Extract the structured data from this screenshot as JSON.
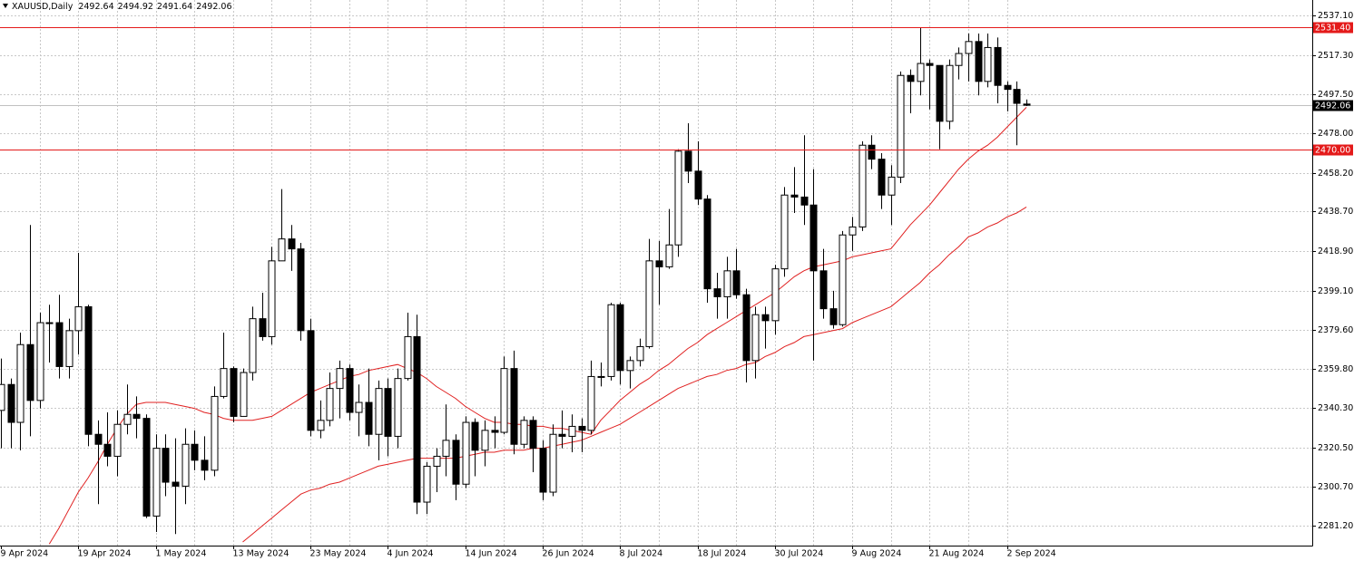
{
  "chart_data": {
    "type": "candlestick",
    "title": "XAUUSD,Daily",
    "categories": [
      "9 Apr 2024",
      null,
      null,
      null,
      null,
      null,
      null,
      null,
      "19 Apr 2024",
      null,
      null,
      null,
      null,
      null,
      null,
      null,
      "1 May 2024",
      null,
      null,
      null,
      null,
      null,
      null,
      null,
      "13 May 2024",
      null,
      null,
      null,
      null,
      null,
      null,
      null,
      "23 May 2024",
      null,
      null,
      null,
      null,
      null,
      null,
      null,
      "4 Jun 2024",
      null,
      null,
      null,
      null,
      null,
      null,
      null,
      "14 Jun 2024",
      null,
      null,
      null,
      null,
      null,
      null,
      null,
      "26 Jun 2024",
      null,
      null,
      null,
      null,
      null,
      null,
      null,
      "8 Jul 2024",
      null,
      null,
      null,
      null,
      null,
      null,
      null,
      "18 Jul 2024",
      null,
      null,
      null,
      null,
      null,
      null,
      null,
      "30 Jul 2024",
      null,
      null,
      null,
      null,
      null,
      null,
      null,
      "9 Aug 2024",
      null,
      null,
      null,
      null,
      null,
      null,
      null,
      "21 Aug 2024",
      null,
      null,
      null,
      null,
      null,
      null,
      null,
      "2 Sep 2024",
      null,
      null
    ],
    "open": [
      2339,
      2352,
      2333,
      2372,
      2344,
      2383,
      2383,
      2361,
      2379,
      2391,
      2327,
      2322,
      2316,
      2332,
      2337,
      2335,
      2286,
      2320,
      2303,
      2301,
      2322,
      2314,
      2309,
      2346,
      2360,
      2336,
      2358,
      2385,
      2376,
      2414,
      2425,
      2420,
      2379,
      2329,
      2334,
      2350,
      2360,
      2338,
      2343,
      2327,
      2350,
      2326,
      2355,
      2376,
      2293,
      2311,
      2316,
      2324,
      2302,
      2333,
      2319,
      2329,
      2328,
      2360,
      2322,
      2334,
      2320,
      2298,
      2327,
      2326,
      2331,
      2329,
      2356,
      2356,
      2392,
      2359,
      2364,
      2371,
      2414,
      2411,
      2422,
      2469,
      2459,
      2445,
      2400,
      2396,
      2409,
      2397,
      2364,
      2387,
      2384,
      2410,
      2447,
      2446,
      2442,
      2409,
      2390,
      2382,
      2427,
      2431,
      2472,
      2465,
      2447,
      2456,
      2507,
      2504,
      2513,
      2512,
      2484,
      2512,
      2518,
      2524,
      2504,
      2521,
      2502,
      2500,
      2492.64
    ],
    "high": [
      2365,
      2355,
      2378,
      2432,
      2388,
      2392,
      2397,
      2385,
      2418,
      2392,
      2334,
      2338,
      2339,
      2352,
      2346,
      2337,
      2327,
      2327,
      2325,
      2330,
      2329,
      2326,
      2351,
      2378,
      2361,
      2360,
      2391,
      2398,
      2421,
      2450,
      2432,
      2423,
      2385,
      2344,
      2358,
      2364,
      2362,
      2352,
      2360,
      2354,
      2355,
      2360,
      2388,
      2387,
      2313,
      2320,
      2342,
      2327,
      2336,
      2335,
      2334,
      2336,
      2366,
      2369,
      2336,
      2336,
      2324,
      2332,
      2339,
      2337,
      2335,
      2364,
      2363,
      2393,
      2393,
      2366,
      2375,
      2425,
      2424,
      2440,
      2470,
      2483,
      2474,
      2447,
      2408,
      2416,
      2420,
      2400,
      2391,
      2391,
      2412,
      2451,
      2461,
      2477,
      2460,
      2420,
      2399,
      2429,
      2436,
      2474,
      2477,
      2468,
      2462,
      2509,
      2510,
      2531,
      2515,
      2512,
      2515,
      2521,
      2528,
      2528,
      2528,
      2526,
      2504,
      2504,
      2494.92
    ],
    "low": [
      2320,
      2320,
      2319,
      2326,
      2340,
      2363,
      2355,
      2355,
      2367,
      2321,
      2292,
      2311,
      2306,
      2327,
      2325,
      2285,
      2278,
      2296,
      2277,
      2292,
      2309,
      2304,
      2306,
      2345,
      2333,
      2337,
      2354,
      2374,
      2372,
      2414,
      2409,
      2374,
      2326,
      2325,
      2331,
      2335,
      2334,
      2326,
      2321,
      2314,
      2316,
      2320,
      2354,
      2287,
      2287,
      2298,
      2306,
      2294,
      2300,
      2306,
      2311,
      2320,
      2327,
      2317,
      2320,
      2308,
      2294,
      2296,
      2320,
      2318,
      2318,
      2327,
      2351,
      2354,
      2352,
      2350,
      2361,
      2370,
      2392,
      2410,
      2416,
      2453,
      2442,
      2393,
      2385,
      2385,
      2395,
      2353,
      2355,
      2370,
      2377,
      2406,
      2438,
      2432,
      2364,
      2385,
      2380,
      2381,
      2419,
      2429,
      2460,
      2440,
      2432,
      2453,
      2488,
      2497,
      2490,
      2470,
      2480,
      2505,
      2504,
      2497,
      2501,
      2493,
      2489,
      2472,
      2491.64
    ],
    "close": [
      2352,
      2333,
      2372,
      2344,
      2383,
      2383,
      2361,
      2379,
      2391,
      2327,
      2322,
      2316,
      2332,
      2337,
      2335,
      2286,
      2320,
      2303,
      2301,
      2322,
      2314,
      2309,
      2346,
      2360,
      2336,
      2358,
      2385,
      2376,
      2414,
      2425,
      2420,
      2379,
      2329,
      2334,
      2350,
      2360,
      2338,
      2343,
      2327,
      2350,
      2326,
      2355,
      2376,
      2293,
      2311,
      2316,
      2324,
      2302,
      2333,
      2319,
      2329,
      2328,
      2360,
      2322,
      2334,
      2320,
      2298,
      2327,
      2326,
      2331,
      2329,
      2356,
      2356,
      2392,
      2359,
      2364,
      2371,
      2414,
      2411,
      2422,
      2469,
      2459,
      2445,
      2400,
      2396,
      2409,
      2397,
      2364,
      2387,
      2384,
      2410,
      2447,
      2446,
      2442,
      2409,
      2390,
      2382,
      2427,
      2431,
      2472,
      2465,
      2447,
      2456,
      2507,
      2504,
      2513,
      2512,
      2484,
      2512,
      2518,
      2524,
      2504,
      2521,
      2502,
      2500,
      2493,
      2492.06
    ],
    "lines": [
      {
        "color": "#e02020",
        "values": [
          null,
          null,
          null,
          null,
          null,
          2272,
          2280,
          2289,
          2298,
          2305,
          2313,
          2322,
          2330,
          2337,
          2342,
          2343,
          2343,
          2343,
          2342,
          2341,
          2340,
          2338,
          2337,
          2335,
          2334,
          2334,
          2334,
          2335,
          2336,
          2339,
          2342,
          2345,
          2348,
          2350,
          2352,
          2354,
          2356,
          2357,
          2359,
          2360,
          2361,
          2362,
          2360,
          2358,
          2355,
          2351,
          2348,
          2345,
          2341,
          2338,
          2335,
          2333,
          2333,
          2332,
          2332,
          2331,
          2331,
          2330,
          2330,
          2329,
          2328,
          2327,
          2334,
          2339,
          2344,
          2348,
          2352,
          2355,
          2359,
          2362,
          2366,
          2370,
          2373,
          2377,
          2380,
          2383,
          2386,
          2389,
          2392,
          2395,
          2398,
          2402,
          2406,
          2409,
          2411,
          2412,
          2413,
          2414,
          2416,
          2417,
          2418,
          2419,
          2420,
          2426,
          2432,
          2437,
          2442,
          2448,
          2454,
          2460,
          2465,
          2469,
          2472,
          2476,
          2481,
          2486,
          2491
        ]
      },
      {
        "color": "#e02020",
        "values": [
          null,
          null,
          null,
          null,
          null,
          null,
          null,
          null,
          null,
          null,
          null,
          null,
          null,
          null,
          null,
          null,
          null,
          null,
          null,
          null,
          null,
          null,
          null,
          null,
          null,
          2273,
          2277,
          2281,
          2285,
          2289,
          2293,
          2297,
          2299,
          2300,
          2302,
          2303,
          2305,
          2307,
          2309,
          2311,
          2312,
          2313,
          2314,
          2315,
          2315,
          2315,
          2315,
          2315,
          2316,
          2317,
          2318,
          2318,
          2319,
          2319,
          2319,
          2320,
          2320,
          2321,
          2322,
          2323,
          2324,
          2326,
          2328,
          2330,
          2332,
          2335,
          2338,
          2341,
          2344,
          2347,
          2350,
          2352,
          2354,
          2356,
          2357,
          2359,
          2360,
          2362,
          2363,
          2366,
          2368,
          2371,
          2373,
          2376,
          2377,
          2378,
          2379,
          2380,
          2383,
          2385,
          2387,
          2389,
          2391,
          2395,
          2399,
          2403,
          2408,
          2412,
          2417,
          2421,
          2426,
          2428,
          2431,
          2433,
          2436,
          2438,
          2441
        ]
      }
    ],
    "levels": [
      {
        "value": 2531.4,
        "label": "2531.40"
      },
      {
        "value": 2470,
        "label": "2470.00"
      }
    ],
    "level_color": "#e41a1a",
    "up_color": "#ffffff",
    "down_color": "#000000",
    "ylim": [
      2271.2,
      2544.83
    ],
    "yticks": [
      {
        "value": 2537.1,
        "label": "2537.10"
      },
      {
        "value": 2517.3,
        "label": "2517.30"
      },
      {
        "value": 2497.5,
        "label": "2497.50"
      },
      {
        "value": 2478,
        "label": "2478.00"
      },
      {
        "value": 2458.2,
        "label": "2458.20"
      },
      {
        "value": 2438.7,
        "label": "2438.70"
      },
      {
        "value": 2418.9,
        "label": "2418.90"
      },
      {
        "value": 2399.1,
        "label": "2399.10"
      },
      {
        "value": 2379.6,
        "label": "2379.60"
      },
      {
        "value": 2359.8,
        "label": "2359.80"
      },
      {
        "value": 2340.3,
        "label": "2340.30"
      },
      {
        "value": 2320.5,
        "label": "2320.50"
      },
      {
        "value": 2300.7,
        "label": "2300.70"
      },
      {
        "value": 2281.2,
        "label": "2281.20"
      }
    ],
    "grid": true
  }
}
